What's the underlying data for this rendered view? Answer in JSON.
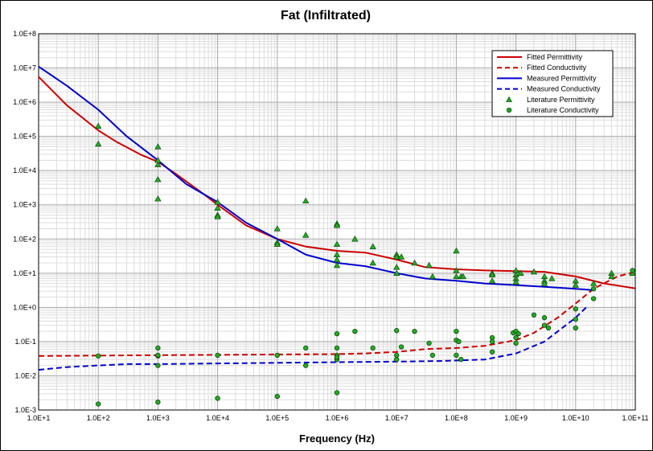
{
  "chart_data": {
    "type": "scatter",
    "title": "Fat (Infiltrated)",
    "xlabel": "Frequency (Hz)",
    "ylabel": "",
    "x_scale": "log",
    "y_scale": "log",
    "xlim": [
      10,
      100000000000
    ],
    "ylim": [
      0.001,
      100000000
    ],
    "x_tick_labels": [
      "1.0E+1",
      "1.0E+2",
      "1.0E+3",
      "1.0E+4",
      "1.0E+5",
      "1.0E+6",
      "1.0E+7",
      "1.0E+8",
      "1.0E+9",
      "1.0E+10",
      "1.0E+11"
    ],
    "y_tick_labels": [
      "1.0E-3",
      "1.0E-2",
      "1.0E-1",
      "1.0E+0",
      "1.0E+1",
      "1.0E+2",
      "1.0E+3",
      "1.0E+4",
      "1.0E+5",
      "1.0E+6",
      "1.0E+7",
      "1.0E+8"
    ],
    "grid": true,
    "legend_position": "top-right",
    "series": [
      {
        "name": "Fitted Permittivity",
        "kind": "line",
        "color": "#cc0000",
        "dash": "solid",
        "x": [
          10,
          30,
          100,
          200,
          500,
          1000,
          2000,
          5000,
          10000,
          30000,
          100000,
          300000,
          1000000,
          3000000,
          10000000,
          30000000,
          100000000,
          300000000,
          1000000000,
          3000000000,
          10000000000,
          30000000000,
          100000000000
        ],
        "y": [
          5500000,
          800000,
          150000,
          70000,
          30000,
          18000,
          8000,
          2500,
          1000,
          250,
          100,
          60,
          45,
          40,
          25,
          15,
          13,
          12,
          11.5,
          11,
          8,
          5,
          3.6
        ]
      },
      {
        "name": "Fitted Conductivity",
        "kind": "line",
        "color": "#cc0000",
        "dash": "dashed",
        "x": [
          10,
          100,
          1000,
          10000,
          100000,
          1000000,
          3000000,
          10000000,
          30000000,
          100000000,
          300000000,
          1000000000,
          2000000000,
          5000000000,
          10000000000,
          20000000000,
          50000000000,
          100000000000
        ],
        "y": [
          0.038,
          0.039,
          0.04,
          0.041,
          0.042,
          0.043,
          0.045,
          0.05,
          0.06,
          0.065,
          0.075,
          0.11,
          0.18,
          0.5,
          1.3,
          3.5,
          8,
          11
        ]
      },
      {
        "name": "Measured Permittivity",
        "kind": "line",
        "color": "#0000cc",
        "dash": "solid",
        "x": [
          10,
          30,
          100,
          300,
          1000,
          3000,
          10000,
          30000,
          100000,
          300000,
          1000000,
          3000000,
          10000000,
          30000000,
          100000000,
          300000000,
          1000000000,
          3000000000,
          10000000000,
          20000000000
        ],
        "y": [
          11000000,
          3000000,
          600000,
          100000,
          20000,
          4000,
          1200,
          300,
          100,
          35,
          20,
          16,
          10,
          7,
          6,
          5,
          4.5,
          4,
          3.5,
          3.2
        ]
      },
      {
        "name": "Measured Conductivity",
        "kind": "line",
        "color": "#0000cc",
        "dash": "dashed",
        "x": [
          10,
          30,
          100,
          300,
          1000,
          10000,
          100000,
          1000000,
          10000000,
          50000000,
          100000000,
          300000000,
          1000000000,
          3000000000,
          10000000000,
          15000000000
        ],
        "y": [
          0.015,
          0.018,
          0.02,
          0.022,
          0.022,
          0.023,
          0.024,
          0.025,
          0.026,
          0.027,
          0.028,
          0.03,
          0.045,
          0.1,
          0.5,
          1.0
        ]
      },
      {
        "name": "Literature Permittivity",
        "kind": "scatter",
        "marker": "triangle",
        "color": "#22aa22",
        "x": [
          100,
          100,
          1000,
          1000,
          1000,
          1000,
          1000,
          10000,
          10000,
          10000,
          10000,
          100000,
          100000,
          100000,
          300000,
          300000,
          1000000,
          1000000,
          1000000,
          1000000,
          1000000,
          1000000,
          2000000,
          4000000,
          4000000,
          10000000,
          10000000,
          10000000,
          10000000,
          12000000,
          20000000,
          35000000,
          40000000,
          100000000,
          100000000,
          100000000,
          120000000,
          130000000,
          400000000,
          400000000,
          400000000,
          1000000000,
          1000000000,
          1000000000,
          1000000000,
          1200000000,
          2000000000,
          3000000000,
          3000000000,
          3000000000,
          4000000000,
          10000000000,
          10000000000,
          20000000000,
          40000000000,
          40000000000,
          90000000000
        ],
        "y": [
          200000,
          60000,
          50000,
          15000,
          5500,
          1500,
          20000,
          1200,
          800,
          500,
          450,
          200,
          80,
          70,
          1300,
          130,
          280,
          250,
          70,
          35,
          25,
          17,
          100,
          60,
          20,
          35,
          30,
          15,
          10,
          30,
          20,
          17,
          8,
          45,
          12,
          8,
          8,
          8,
          10,
          9,
          6,
          12,
          9,
          7,
          5.5,
          10,
          11,
          8,
          6,
          5,
          7,
          6,
          4.5,
          5,
          10,
          8,
          10
        ]
      },
      {
        "name": "Literature Conductivity",
        "kind": "scatter",
        "marker": "circle",
        "color": "#22aa22",
        "x": [
          100,
          100,
          1000,
          1000,
          1000,
          1000,
          1000,
          10000,
          10000,
          100000,
          100000,
          300000,
          300000,
          1000000,
          1000000,
          1000000,
          1000000,
          1000000,
          1000000,
          2000000,
          4000000,
          10000000,
          10000000,
          10000000,
          12000000,
          20000000,
          35000000,
          40000000,
          100000000,
          100000000,
          100000000,
          110000000,
          120000000,
          400000000,
          400000000,
          400000000,
          900000000,
          1000000000,
          1000000000,
          1000000000,
          1100000000,
          2000000000,
          3000000000,
          3000000000,
          3500000000,
          10000000000,
          10000000000,
          10000000000,
          20000000000,
          20000000000,
          90000000000
        ],
        "y": [
          0.038,
          0.0015,
          0.065,
          0.038,
          0.02,
          0.0017,
          0.04,
          0.04,
          0.0022,
          0.04,
          0.0025,
          0.065,
          0.02,
          0.17,
          0.065,
          0.04,
          0.03,
          0.035,
          0.0032,
          0.2,
          0.065,
          0.21,
          0.04,
          0.03,
          0.07,
          0.2,
          0.09,
          0.04,
          0.2,
          0.11,
          0.04,
          0.1,
          0.03,
          0.13,
          0.1,
          0.05,
          0.18,
          0.2,
          0.13,
          0.09,
          0.17,
          0.6,
          0.5,
          0.3,
          0.25,
          0.9,
          0.45,
          0.25,
          3.5,
          1.8,
          12
        ]
      }
    ]
  }
}
